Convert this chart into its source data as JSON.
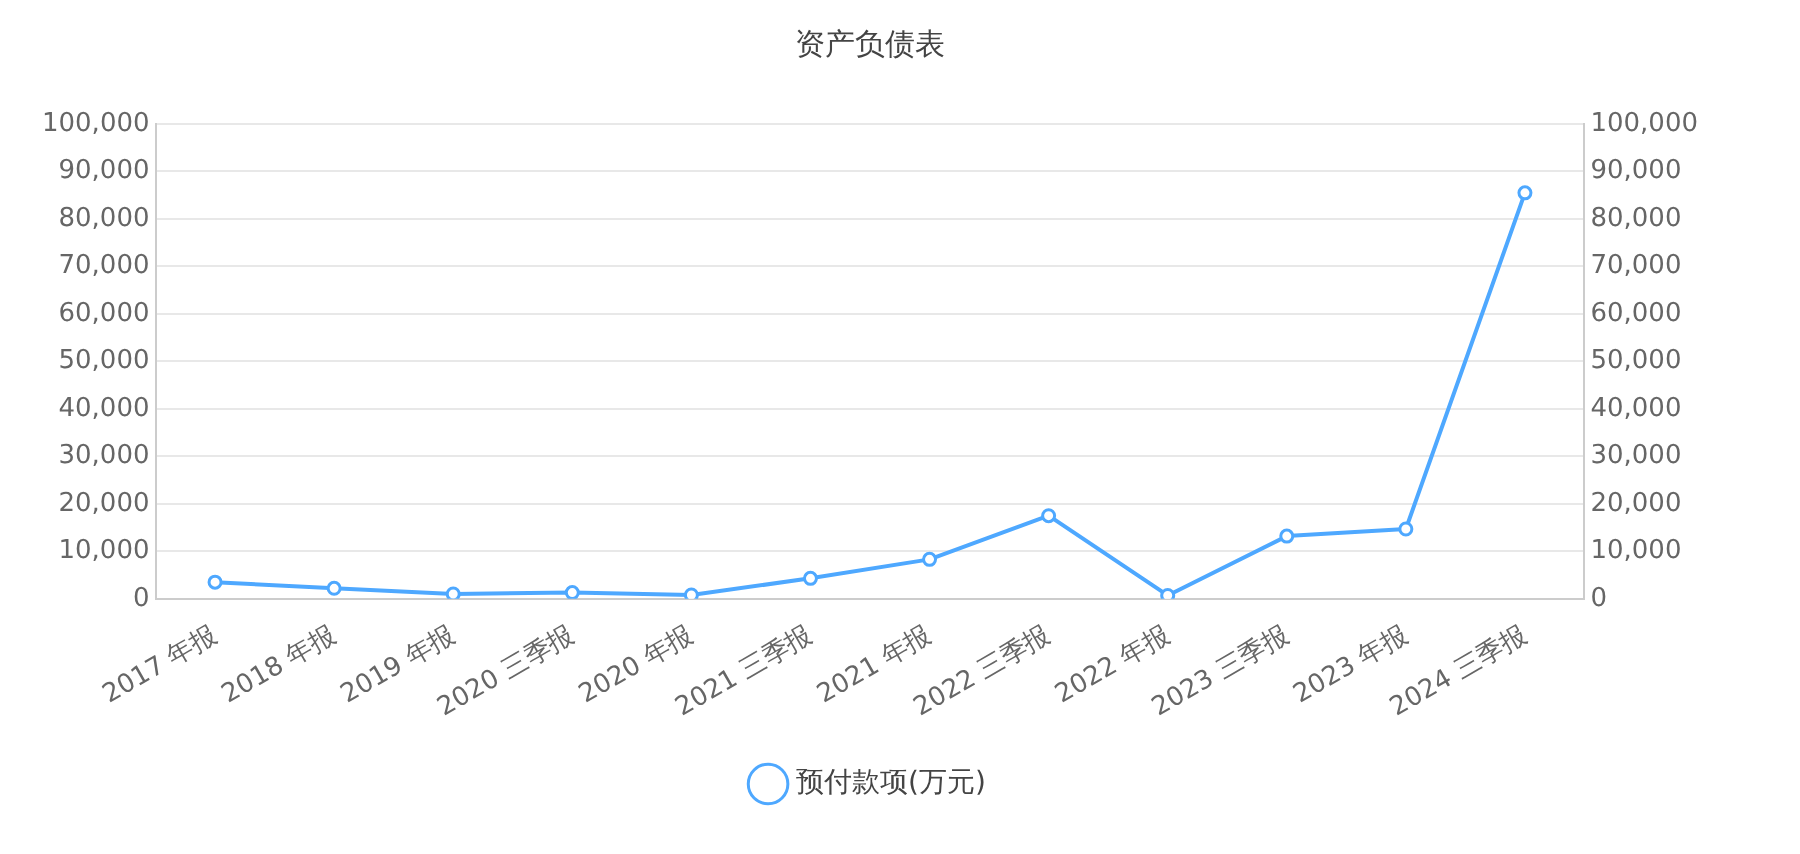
{
  "chart_data": {
    "type": "line",
    "title": "资产负债表",
    "categories": [
      "2017 年报",
      "2018 年报",
      "2019 年报",
      "2020 三季报",
      "2020 年报",
      "2021 三季报",
      "2021 年报",
      "2022 三季报",
      "2022 年报",
      "2023 三季报",
      "2023 年报",
      "2024 三季报"
    ],
    "series": [
      {
        "name": "预付款项(万元)",
        "color": "#4ea8ff",
        "values": [
          3500,
          2200,
          1000,
          1300,
          800,
          4300,
          8300,
          17500,
          700,
          13200,
          14700,
          85500
        ]
      }
    ],
    "ylim": [
      0,
      100000
    ],
    "yticks": [
      0,
      {
        "value": 10000,
        "label": "10,000"
      },
      {
        "value": 20000,
        "label": "20,000"
      },
      {
        "value": 30000,
        "label": "30,000"
      },
      {
        "value": 40000,
        "label": "40,000"
      },
      {
        "value": 50000,
        "label": "50,000"
      },
      {
        "value": 60000,
        "label": "60,000"
      },
      {
        "value": 70000,
        "label": "70,000"
      },
      {
        "value": 80000,
        "label": "80,000"
      },
      {
        "value": 90000,
        "label": "90,000"
      },
      {
        "value": 100000,
        "label": "100,000"
      }
    ],
    "y2lim": [
      0,
      100000
    ],
    "y2ticks": [
      0,
      {
        "value": 10000,
        "label": "10,000"
      },
      {
        "value": 20000,
        "label": "20,000"
      },
      {
        "value": 30000,
        "label": "30,000"
      },
      {
        "value": 40000,
        "label": "40,000"
      },
      {
        "value": 50000,
        "label": "50,000"
      },
      {
        "value": 60000,
        "label": "60,000"
      },
      {
        "value": 70000,
        "label": "70,000"
      },
      {
        "value": 80000,
        "label": "80,000"
      },
      {
        "value": 90000,
        "label": "90,000"
      },
      {
        "value": 100000,
        "label": "100,000"
      }
    ],
    "grid": "y",
    "legend": "bottom",
    "marker": "circle",
    "line_style": "solid"
  }
}
